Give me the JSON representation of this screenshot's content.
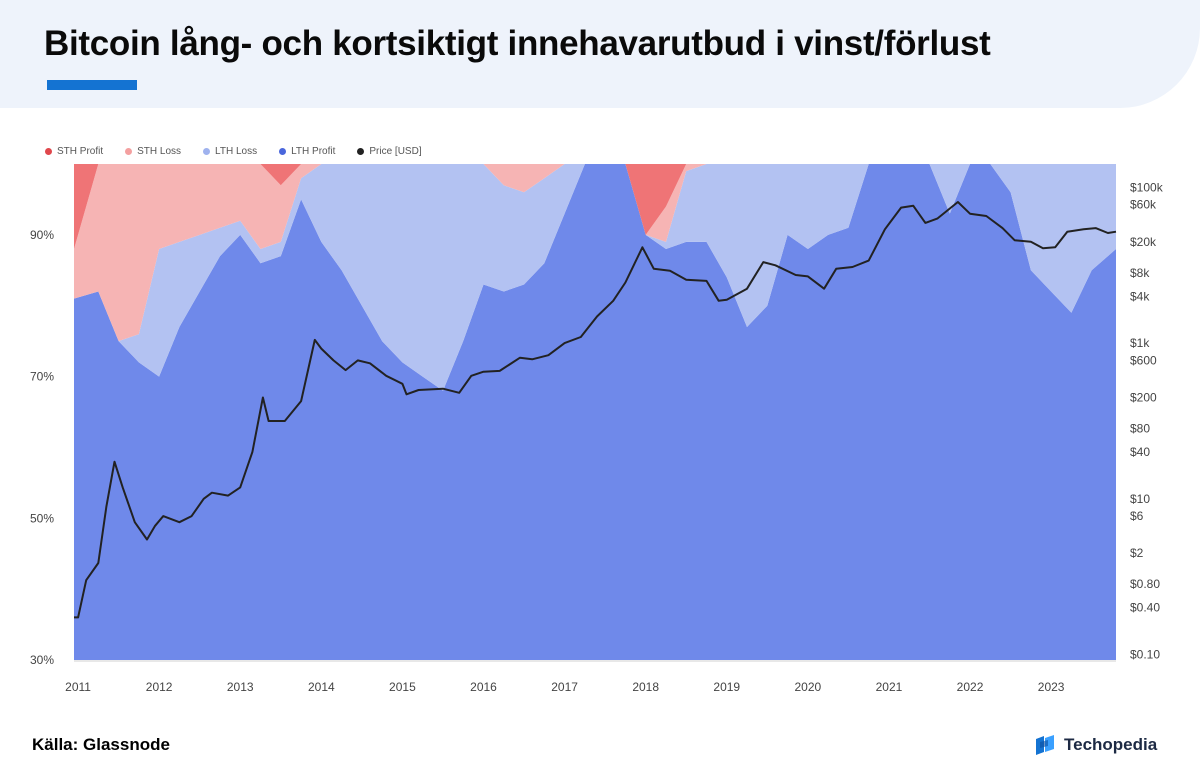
{
  "header": {
    "title": "Bitcoin lång- och kortsiktigt innehavarutbud i vinst/förlust"
  },
  "source": "Källa: Glassnode",
  "brand": {
    "name": "Techopedia",
    "logo_icon": "techopedia-cube-icon",
    "color": "#1473d2"
  },
  "chart_data": {
    "type": "area",
    "title": "",
    "xlabel": "",
    "ylabel": "",
    "stacked": true,
    "legend": {
      "placement": "top-left",
      "entries": [
        "STH Profit",
        "STH Loss",
        "LTH Loss",
        "LTH Profit",
        "Price [USD]"
      ]
    },
    "series_colors": {
      "STH Profit": "#ef7476",
      "STH Loss": "#f6b4b4",
      "LTH Loss": "#b3c2f2",
      "LTH Profit": "#6f89ea",
      "Price [USD]": "#222222"
    },
    "x_ticks": [
      "2011",
      "2012",
      "2013",
      "2014",
      "2015",
      "2016",
      "2017",
      "2018",
      "2019",
      "2020",
      "2021",
      "2022",
      "2023"
    ],
    "xlim": [
      2010.95,
      2023.8
    ],
    "left_axis": {
      "unit": "%",
      "ylim": [
        30,
        100
      ],
      "ticks": [
        "30%",
        "50%",
        "70%",
        "90%"
      ],
      "tick_values": [
        30,
        50,
        70,
        90
      ]
    },
    "right_axis": {
      "scale": "log",
      "ylim": [
        0.085,
        200000
      ],
      "ticks": [
        "$0.10",
        "$0.40",
        "$0.80",
        "$2",
        "$6",
        "$10",
        "$40",
        "$80",
        "$200",
        "$600",
        "$1k",
        "$4k",
        "$8k",
        "$20k",
        "$60k",
        "$100k"
      ],
      "tick_values": [
        0.1,
        0.4,
        0.8,
        2,
        6,
        10,
        40,
        80,
        200,
        600,
        1000,
        4000,
        8000,
        20000,
        60000,
        100000
      ]
    },
    "x": [
      2011.0,
      2011.25,
      2011.5,
      2011.75,
      2012.0,
      2012.25,
      2012.5,
      2012.75,
      2013.0,
      2013.25,
      2013.5,
      2013.75,
      2014.0,
      2014.25,
      2014.5,
      2014.75,
      2015.0,
      2015.25,
      2015.5,
      2015.75,
      2016.0,
      2016.25,
      2016.5,
      2016.75,
      2017.0,
      2017.25,
      2017.5,
      2017.75,
      2018.0,
      2018.25,
      2018.5,
      2018.75,
      2019.0,
      2019.25,
      2019.5,
      2019.75,
      2020.0,
      2020.25,
      2020.5,
      2020.75,
      2021.0,
      2021.25,
      2021.5,
      2021.75,
      2022.0,
      2022.25,
      2022.5,
      2022.75,
      2023.0,
      2023.25,
      2023.5,
      2023.75
    ],
    "series": [
      {
        "name": "LTH Profit",
        "values": [
          51,
          52,
          45,
          42,
          40,
          47,
          52,
          57,
          60,
          56,
          57,
          65,
          59,
          55,
          50,
          45,
          42,
          40,
          38,
          45,
          53,
          52,
          53,
          56,
          63,
          71,
          73,
          70,
          60,
          58,
          59,
          59,
          54,
          47,
          50,
          60,
          58,
          60,
          61,
          70,
          78,
          75,
          73,
          63,
          80,
          74,
          66,
          55,
          52,
          49,
          55,
          58
        ]
      },
      {
        "name": "LTH Loss",
        "values": [
          0,
          0,
          0,
          4,
          18,
          12,
          8,
          4,
          2,
          2,
          2,
          3,
          11,
          20,
          24,
          28,
          31,
          33,
          37,
          30,
          18,
          15,
          13,
          12,
          9,
          2,
          0,
          0,
          0,
          1,
          10,
          18,
          25,
          32,
          29,
          18,
          19,
          18,
          18,
          9,
          0,
          0,
          0,
          12,
          3,
          9,
          17,
          28,
          31,
          35,
          29,
          27
        ]
      },
      {
        "name": "STH Loss",
        "values": [
          7,
          30,
          35,
          46,
          34,
          30,
          26,
          19,
          12,
          20,
          8,
          7,
          11,
          7,
          8,
          9,
          6,
          5,
          6,
          8,
          9,
          11,
          10,
          8,
          0,
          1,
          5,
          7,
          0,
          5,
          8,
          2,
          0,
          0,
          0,
          0,
          1,
          1,
          1,
          0,
          1,
          2,
          4,
          2,
          2,
          3,
          1,
          1,
          1,
          1,
          0,
          0
        ]
      },
      {
        "name": "STH Profit",
        "values": [
          42,
          18,
          20,
          8,
          8,
          11,
          14,
          20,
          26,
          22,
          33,
          25,
          19,
          18,
          18,
          18,
          21,
          22,
          19,
          17,
          20,
          22,
          24,
          24,
          28,
          26,
          22,
          23,
          40,
          36,
          23,
          21,
          21,
          21,
          21,
          22,
          22,
          21,
          20,
          21,
          21,
          23,
          23,
          23,
          15,
          14,
          16,
          16,
          16,
          15,
          16,
          15
        ]
      }
    ],
    "price": {
      "name": "Price [USD]",
      "points": [
        [
          2010.95,
          0.3
        ],
        [
          2011.0,
          0.3
        ],
        [
          2011.1,
          0.9
        ],
        [
          2011.25,
          1.5
        ],
        [
          2011.35,
          8
        ],
        [
          2011.45,
          30
        ],
        [
          2011.55,
          14
        ],
        [
          2011.7,
          5
        ],
        [
          2011.85,
          3
        ],
        [
          2011.95,
          4.5
        ],
        [
          2012.05,
          6
        ],
        [
          2012.25,
          5
        ],
        [
          2012.4,
          6
        ],
        [
          2012.55,
          10
        ],
        [
          2012.65,
          12
        ],
        [
          2012.85,
          11
        ],
        [
          2013.0,
          14
        ],
        [
          2013.15,
          40
        ],
        [
          2013.28,
          200
        ],
        [
          2013.35,
          100
        ],
        [
          2013.55,
          100
        ],
        [
          2013.75,
          180
        ],
        [
          2013.92,
          1100
        ],
        [
          2014.0,
          850
        ],
        [
          2014.15,
          600
        ],
        [
          2014.3,
          450
        ],
        [
          2014.45,
          600
        ],
        [
          2014.6,
          550
        ],
        [
          2014.8,
          380
        ],
        [
          2015.0,
          300
        ],
        [
          2015.05,
          220
        ],
        [
          2015.2,
          250
        ],
        [
          2015.5,
          260
        ],
        [
          2015.7,
          230
        ],
        [
          2015.85,
          380
        ],
        [
          2016.0,
          430
        ],
        [
          2016.2,
          440
        ],
        [
          2016.45,
          650
        ],
        [
          2016.6,
          620
        ],
        [
          2016.8,
          700
        ],
        [
          2017.0,
          1000
        ],
        [
          2017.2,
          1200
        ],
        [
          2017.4,
          2200
        ],
        [
          2017.6,
          3500
        ],
        [
          2017.75,
          6000
        ],
        [
          2017.96,
          17000
        ],
        [
          2018.1,
          9000
        ],
        [
          2018.3,
          8500
        ],
        [
          2018.5,
          6500
        ],
        [
          2018.75,
          6300
        ],
        [
          2018.9,
          3500
        ],
        [
          2019.0,
          3600
        ],
        [
          2019.25,
          5000
        ],
        [
          2019.45,
          11000
        ],
        [
          2019.6,
          10000
        ],
        [
          2019.85,
          7500
        ],
        [
          2020.0,
          7200
        ],
        [
          2020.2,
          5000
        ],
        [
          2020.35,
          9000
        ],
        [
          2020.55,
          9500
        ],
        [
          2020.75,
          11500
        ],
        [
          2020.95,
          29000
        ],
        [
          2021.15,
          55000
        ],
        [
          2021.3,
          58000
        ],
        [
          2021.45,
          35000
        ],
        [
          2021.6,
          40000
        ],
        [
          2021.85,
          65000
        ],
        [
          2022.0,
          46000
        ],
        [
          2022.2,
          43000
        ],
        [
          2022.4,
          30000
        ],
        [
          2022.55,
          21000
        ],
        [
          2022.75,
          20000
        ],
        [
          2022.9,
          16500
        ],
        [
          2023.05,
          17000
        ],
        [
          2023.2,
          27000
        ],
        [
          2023.4,
          29000
        ],
        [
          2023.55,
          30000
        ],
        [
          2023.7,
          26000
        ],
        [
          2023.8,
          27000
        ]
      ]
    }
  }
}
